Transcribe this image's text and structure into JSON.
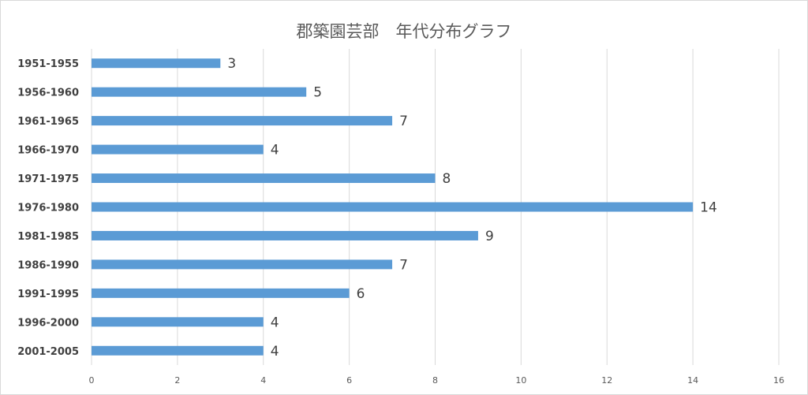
{
  "chart_data": {
    "type": "bar",
    "orientation": "horizontal",
    "title": "郡築園芸部　年代分布グラフ",
    "categories": [
      "1951-1955",
      "1956-1960",
      "1961-1965",
      "1966-1970",
      "1971-1975",
      "1976-1980",
      "1981-1985",
      "1986-1990",
      "1991-1995",
      "1996-2000",
      "2001-2005"
    ],
    "values": [
      3,
      5,
      7,
      4,
      8,
      14,
      9,
      7,
      6,
      4,
      4
    ],
    "xlim": [
      0,
      16
    ],
    "x_ticks": [
      "0",
      "2",
      "4",
      "6",
      "8",
      "10",
      "12",
      "14",
      "16"
    ],
    "xlabel": "",
    "ylabel": "",
    "grid": "vertical",
    "legend": "none",
    "bar_color": "#5b9bd5",
    "grid_color": "#d9d9d9"
  }
}
